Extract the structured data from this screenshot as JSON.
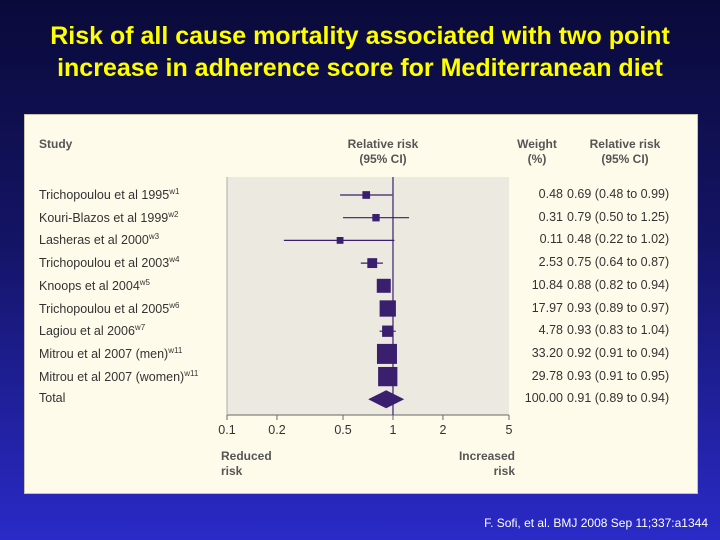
{
  "title": {
    "line1": "Risk of all cause mortality associated with two point",
    "line2": "increase in adherence score for Mediterranean diet"
  },
  "citation": "F. Sofi, et al. BMJ 2008 Sep 11;337:a1344",
  "headers": {
    "study": "Study",
    "rr_line1": "Relative risk",
    "rr_line2": "(95% CI)",
    "weight_line1": "Weight",
    "weight_line2": "(%)",
    "rrci_line1": "Relative risk",
    "rrci_line2": "(95% CI)"
  },
  "axis": {
    "reduced_line1": "Reduced",
    "reduced_line2": "risk",
    "increased_line1": "Increased",
    "increased_line2": "risk"
  },
  "chart_data": {
    "type": "forest",
    "xscale": "log",
    "xlim": [
      0.1,
      5
    ],
    "ticks": [
      0.1,
      0.2,
      0.5,
      1,
      2,
      5
    ],
    "tick_labels": [
      "0.1",
      "0.2",
      "0.5",
      "1",
      "2",
      "5"
    ],
    "reference_line": 1,
    "studies": [
      {
        "name": "Trichopoulou et al 1995",
        "sup": "w1",
        "rr": 0.69,
        "lo": 0.48,
        "hi": 0.99,
        "weight": "0.48",
        "ci_text": "0.69 (0.48 to 0.99)"
      },
      {
        "name": "Kouri-Blazos et al 1999",
        "sup": "w2",
        "rr": 0.79,
        "lo": 0.5,
        "hi": 1.25,
        "weight": "0.31",
        "ci_text": "0.79 (0.50 to 1.25)"
      },
      {
        "name": "Lasheras et al 2000",
        "sup": "w3",
        "rr": 0.48,
        "lo": 0.22,
        "hi": 1.02,
        "weight": "0.11",
        "ci_text": "0.48 (0.22 to 1.02)"
      },
      {
        "name": "Trichopoulou et al 2003",
        "sup": "w4",
        "rr": 0.75,
        "lo": 0.64,
        "hi": 0.87,
        "weight": "2.53",
        "ci_text": "0.75 (0.64 to 0.87)"
      },
      {
        "name": "Knoops et al 2004",
        "sup": "w5",
        "rr": 0.88,
        "lo": 0.82,
        "hi": 0.94,
        "weight": "10.84",
        "ci_text": "0.88 (0.82 to 0.94)"
      },
      {
        "name": "Trichopoulou et al 2005",
        "sup": "w6",
        "rr": 0.93,
        "lo": 0.89,
        "hi": 0.97,
        "weight": "17.97",
        "ci_text": "0.93 (0.89 to 0.97)"
      },
      {
        "name": "Lagiou et al 2006",
        "sup": "w7",
        "rr": 0.93,
        "lo": 0.83,
        "hi": 1.04,
        "weight": "4.78",
        "ci_text": "0.93 (0.83 to 1.04)"
      },
      {
        "name": "Mitrou et al 2007 (men)",
        "sup": "w11",
        "rr": 0.92,
        "lo": 0.91,
        "hi": 0.94,
        "weight": "33.20",
        "ci_text": "0.92 (0.91 to 0.94)"
      },
      {
        "name": "Mitrou et al 2007 (women)",
        "sup": "w11",
        "rr": 0.93,
        "lo": 0.91,
        "hi": 0.95,
        "weight": "29.78",
        "ci_text": "0.93 (0.91 to 0.95)"
      }
    ],
    "total": {
      "name": "Total",
      "rr": 0.91,
      "lo": 0.89,
      "hi": 0.94,
      "weight": "100.00",
      "ci_text": "0.91 (0.89 to 0.94)"
    },
    "colors": {
      "marker": "#3a1f6e",
      "line": "#3a1f6e",
      "plot_bg": "#ece9e0"
    }
  }
}
